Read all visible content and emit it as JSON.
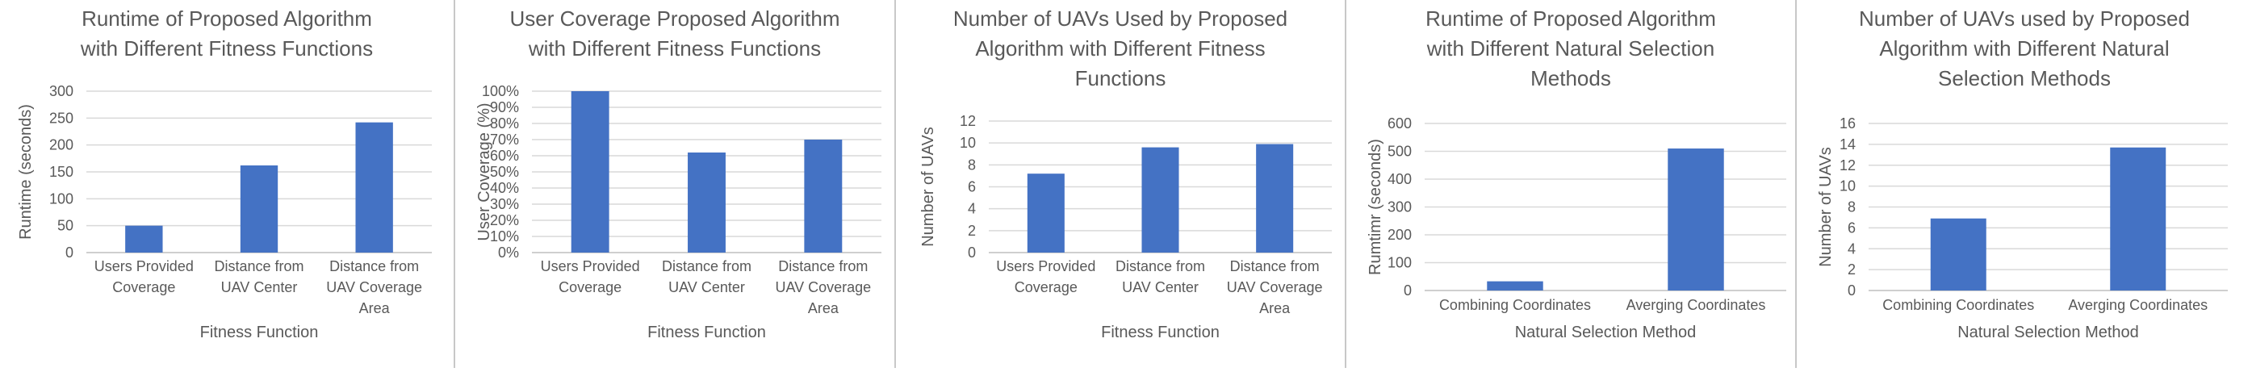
{
  "colors": {
    "bar": "#4472C4",
    "grid": "#d9d9d9",
    "axis": "#bfbfbf",
    "text": "#595959",
    "divider": "#c8c8c8"
  },
  "chart_data": [
    {
      "type": "bar",
      "title": [
        "Runtime of Proposed Algorithm",
        "with Different Fitness Functions"
      ],
      "xlabel": "Fitness Function",
      "ylabel": "Runtime (seconds)",
      "categories": [
        [
          "Users Provided",
          "Coverage"
        ],
        [
          "Distance from",
          "UAV Center"
        ],
        [
          "Distance from",
          "UAV Coverage",
          "Area"
        ]
      ],
      "values": [
        50,
        162,
        242
      ],
      "ylim": [
        0,
        300
      ],
      "ticks": [
        0,
        50,
        100,
        150,
        200,
        250,
        300
      ],
      "tick_labels": [
        "0",
        "50",
        "100",
        "150",
        "200",
        "250",
        "300"
      ],
      "grid": true
    },
    {
      "type": "bar",
      "title": [
        "User Coverage Proposed Algorithm",
        "with Different Fitness Functions"
      ],
      "xlabel": "Fitness Function",
      "ylabel": "User Coverage (%)",
      "categories": [
        [
          "Users Provided",
          "Coverage"
        ],
        [
          "Distance from",
          "UAV Center"
        ],
        [
          "Distance from",
          "UAV Coverage",
          "Area"
        ]
      ],
      "values": [
        100,
        62,
        70
      ],
      "ylim": [
        0,
        100
      ],
      "ticks": [
        0,
        10,
        20,
        30,
        40,
        50,
        60,
        70,
        80,
        90,
        100
      ],
      "tick_labels": [
        "0%",
        "10%",
        "20%",
        "30%",
        "40%",
        "50%",
        "60%",
        "70%",
        "80%",
        "90%",
        "100%"
      ],
      "grid": true
    },
    {
      "type": "bar",
      "title": [
        "Number of UAVs Used by Proposed",
        "Algorithm with Different Fitness",
        "Functions"
      ],
      "xlabel": "Fitness Function",
      "ylabel": "Number of UAVs",
      "categories": [
        [
          "Users Provided",
          "Coverage"
        ],
        [
          "Distance from",
          "UAV Center"
        ],
        [
          "Distance from",
          "UAV Coverage",
          "Area"
        ]
      ],
      "values": [
        7.2,
        9.6,
        9.9
      ],
      "ylim": [
        0,
        12
      ],
      "ticks": [
        0,
        2,
        4,
        6,
        8,
        10,
        12
      ],
      "tick_labels": [
        "0",
        "2",
        "4",
        "6",
        "8",
        "10",
        "12"
      ],
      "grid": true
    },
    {
      "type": "bar",
      "title": [
        "Runtime of Proposed Algorithm",
        "with Different Natural Selection",
        "Methods"
      ],
      "xlabel": "Natural Selection Method",
      "ylabel": "Rumtimr (seconds)",
      "categories": [
        [
          "Combining Coordinates"
        ],
        [
          "Averging Coordinates"
        ]
      ],
      "values": [
        33,
        510
      ],
      "ylim": [
        0,
        600
      ],
      "ticks": [
        0,
        100,
        200,
        300,
        400,
        500,
        600
      ],
      "tick_labels": [
        "0",
        "100",
        "200",
        "300",
        "400",
        "500",
        "600"
      ],
      "grid": true
    },
    {
      "type": "bar",
      "title": [
        "Number of UAVs used by Proposed",
        "Algorithm with Different Natural",
        "Selection Methods"
      ],
      "xlabel": "Natural Selection Method",
      "ylabel": "Number of UAVs",
      "categories": [
        [
          "Combining Coordinates"
        ],
        [
          "Averging Coordinates"
        ]
      ],
      "values": [
        6.9,
        13.7
      ],
      "ylim": [
        0,
        16
      ],
      "ticks": [
        0,
        2,
        4,
        6,
        8,
        10,
        12,
        14,
        16
      ],
      "tick_labels": [
        "0",
        "2",
        "4",
        "6",
        "8",
        "10",
        "12",
        "14",
        "16"
      ],
      "grid": true
    }
  ]
}
